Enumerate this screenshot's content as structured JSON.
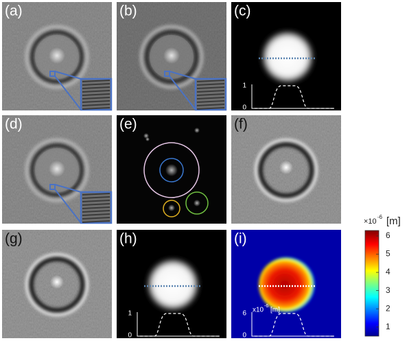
{
  "panels": [
    {
      "label": "(a)"
    },
    {
      "label": "(b)"
    },
    {
      "label": "(c)",
      "profile_ticks": [
        "1",
        "0"
      ]
    },
    {
      "label": "(d)"
    },
    {
      "label": "(e)"
    },
    {
      "label": "(f)"
    },
    {
      "label": "(g)"
    },
    {
      "label": "(h)",
      "profile_ticks": [
        "1",
        "0"
      ]
    },
    {
      "label": "(i)",
      "profile_ticks": [
        "6",
        "0"
      ],
      "profile_unit": {
        "base": "x10",
        "exponent": "-6",
        "unit": "[m]"
      }
    }
  ],
  "colorbar": {
    "label": {
      "base": "×10",
      "exponent": "-6",
      "unit": "[m]"
    },
    "lim": [
      0.5,
      6.3
    ],
    "ticks": [
      1,
      2,
      3,
      4,
      5,
      6
    ]
  }
}
